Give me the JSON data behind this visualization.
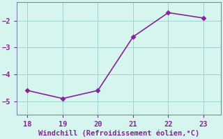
{
  "x": [
    18,
    19,
    20,
    21,
    22,
    23
  ],
  "y": [
    -4.6,
    -4.9,
    -4.6,
    -2.6,
    -1.7,
    -1.9
  ],
  "line_color": "#882299",
  "marker_color": "#882299",
  "background_color": "#d6f5ef",
  "grid_color": "#99cccc",
  "spine_color": "#7788aa",
  "xlabel": "Windchill (Refroidissement éolien,°C)",
  "xlabel_color": "#882299",
  "tick_color": "#882299",
  "ylim": [
    -5.5,
    -1.3
  ],
  "xlim": [
    17.7,
    23.5
  ],
  "yticks": [
    -5,
    -4,
    -3,
    -2
  ],
  "xticks": [
    18,
    19,
    20,
    21,
    22,
    23
  ],
  "font_size": 7.5,
  "xlabel_font_size": 7.5,
  "linewidth": 1.2,
  "markersize": 3.5
}
